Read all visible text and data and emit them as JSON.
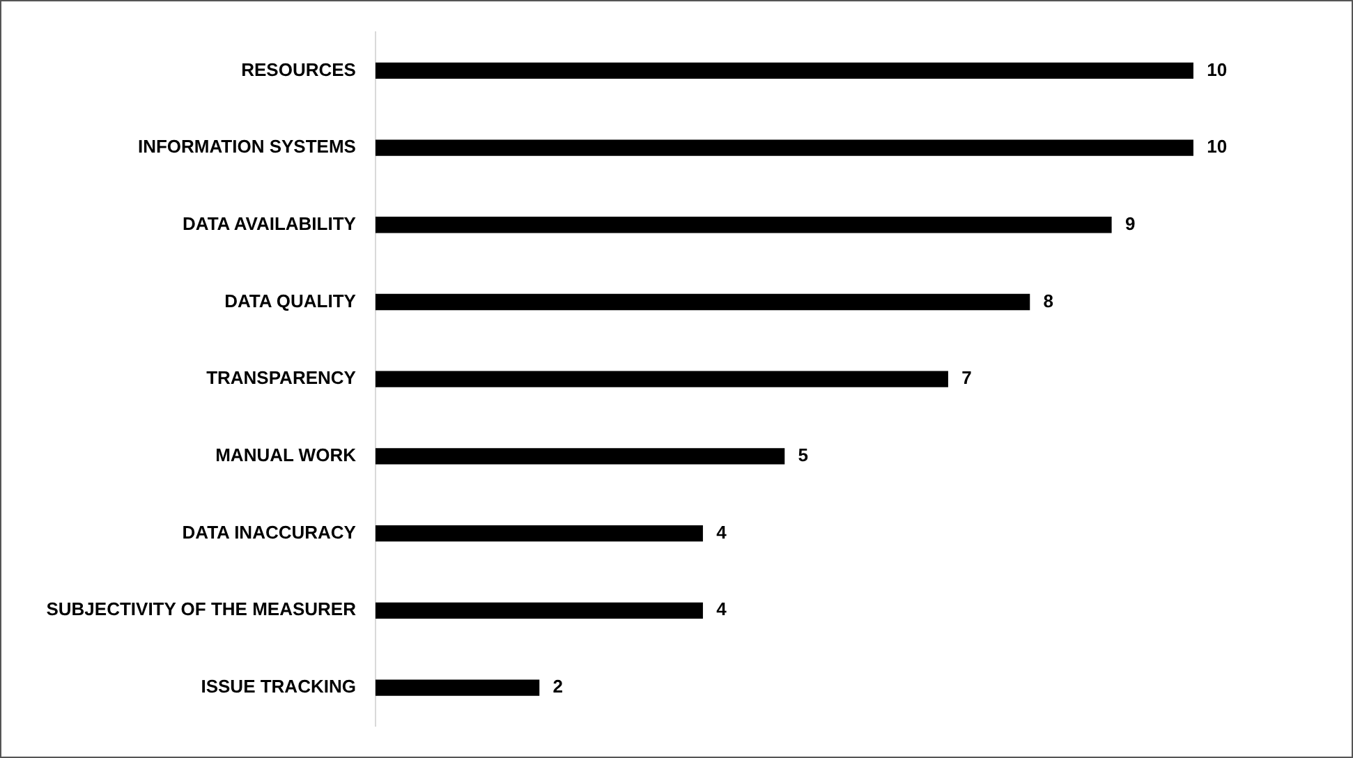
{
  "chart_data": {
    "type": "bar",
    "orientation": "horizontal",
    "categories": [
      "RESOURCES",
      "INFORMATION SYSTEMS",
      "DATA AVAILABILITY",
      "DATA QUALITY",
      "TRANSPARENCY",
      "MANUAL WORK",
      "DATA INACCURACY",
      "SUBJECTIVITY OF THE MEASURER",
      "ISSUE TRACKING"
    ],
    "values": [
      10,
      10,
      9,
      8,
      7,
      5,
      4,
      4,
      2
    ],
    "color": "#000000",
    "data_labels": true,
    "grid": false,
    "legend": false
  }
}
